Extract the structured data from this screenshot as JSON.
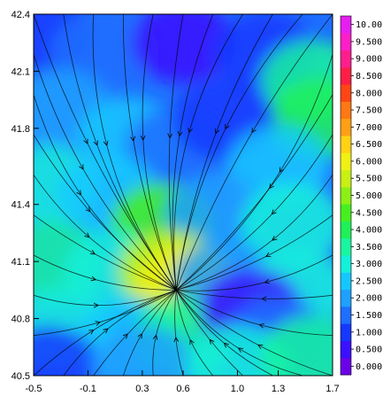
{
  "chart_data": {
    "type": "heatmap",
    "subtype": "filled-contour with streamlines",
    "title": "",
    "xlabel": "",
    "ylabel": "",
    "xlim": [
      -0.5,
      1.7
    ],
    "ylim": [
      40.5,
      42.4
    ],
    "x_ticks": [
      "-0.5",
      "-0.1",
      "0.3",
      "0.6",
      "1.0",
      "1.3",
      "1.7"
    ],
    "x_tick_values": [
      -0.5,
      -0.1,
      0.3,
      0.6,
      1.0,
      1.3,
      1.7
    ],
    "y_ticks": [
      "40.5",
      "40.8",
      "41.1",
      "41.4",
      "41.8",
      "42.1",
      "42.4"
    ],
    "y_tick_values": [
      40.5,
      40.8,
      41.1,
      41.4,
      41.8,
      42.1,
      42.4
    ],
    "colorbar": {
      "labels": [
        "0.000",
        "0.500",
        "1.000",
        "1.500",
        "2.000",
        "2.500",
        "3.000",
        "3.500",
        "4.000",
        "4.500",
        "5.000",
        "5.500",
        "6.000",
        "6.500",
        "7.000",
        "7.500",
        "8.000",
        "8.500",
        "9.000",
        "9.500",
        "10.00"
      ],
      "levels": [
        0.0,
        0.5,
        1.0,
        1.5,
        2.0,
        2.5,
        3.0,
        3.5,
        4.0,
        4.5,
        5.0,
        5.5,
        6.0,
        6.5,
        7.0,
        7.5,
        8.0,
        8.5,
        9.0,
        9.5,
        10.0
      ],
      "colors": [
        "#6a00e8",
        "#3a10ff",
        "#1438ff",
        "#1e6eff",
        "#1ea0ff",
        "#14c8ff",
        "#14f0dc",
        "#19f5a0",
        "#1ef05a",
        "#46f01e",
        "#8cf014",
        "#c8f014",
        "#f0f014",
        "#ffd214",
        "#ffa014",
        "#ff7814",
        "#ff4614",
        "#ff1e46",
        "#ff1e8c",
        "#ff1ec8",
        "#e61ef0"
      ]
    },
    "field_regions": [
      {
        "x": -0.45,
        "y": 42.3,
        "value": 1.0
      },
      {
        "x": 0.0,
        "y": 42.2,
        "value": 1.5
      },
      {
        "x": 0.6,
        "y": 42.25,
        "value": 0.5
      },
      {
        "x": 1.2,
        "y": 42.2,
        "value": 1.0
      },
      {
        "x": 1.55,
        "y": 42.05,
        "value": 3.5
      },
      {
        "x": 1.6,
        "y": 41.85,
        "value": 4.0
      },
      {
        "x": -0.3,
        "y": 41.9,
        "value": 2.0
      },
      {
        "x": 0.2,
        "y": 41.75,
        "value": 2.5
      },
      {
        "x": 0.55,
        "y": 41.7,
        "value": 1.5
      },
      {
        "x": 0.9,
        "y": 41.85,
        "value": 1.0
      },
      {
        "x": 1.3,
        "y": 41.6,
        "value": 2.5
      },
      {
        "x": -0.4,
        "y": 41.5,
        "value": 3.0
      },
      {
        "x": 0.05,
        "y": 41.45,
        "value": 2.5
      },
      {
        "x": 0.45,
        "y": 41.3,
        "value": 4.5
      },
      {
        "x": 0.85,
        "y": 41.35,
        "value": 2.0
      },
      {
        "x": 1.4,
        "y": 41.3,
        "value": 3.0
      },
      {
        "x": -0.35,
        "y": 41.1,
        "value": 3.5
      },
      {
        "x": 0.1,
        "y": 41.05,
        "value": 3.0
      },
      {
        "x": 0.5,
        "y": 41.05,
        "value": 5.5
      },
      {
        "x": 0.62,
        "y": 40.98,
        "value": 6.0
      },
      {
        "x": 0.9,
        "y": 41.0,
        "value": 2.0
      },
      {
        "x": 1.45,
        "y": 40.95,
        "value": 3.0
      },
      {
        "x": -0.3,
        "y": 40.75,
        "value": 3.0
      },
      {
        "x": 0.2,
        "y": 40.7,
        "value": 2.5
      },
      {
        "x": 0.6,
        "y": 40.7,
        "value": 3.5
      },
      {
        "x": 1.1,
        "y": 40.85,
        "value": 0.5
      },
      {
        "x": 1.3,
        "y": 40.7,
        "value": 1.5
      },
      {
        "x": -0.4,
        "y": 40.55,
        "value": 1.0
      },
      {
        "x": 0.3,
        "y": 40.55,
        "value": 2.0
      },
      {
        "x": 1.0,
        "y": 40.55,
        "value": 3.0
      },
      {
        "x": 1.55,
        "y": 40.6,
        "value": 3.5
      }
    ],
    "streamline_convergence": {
      "x": 0.55,
      "y": 40.95
    }
  }
}
